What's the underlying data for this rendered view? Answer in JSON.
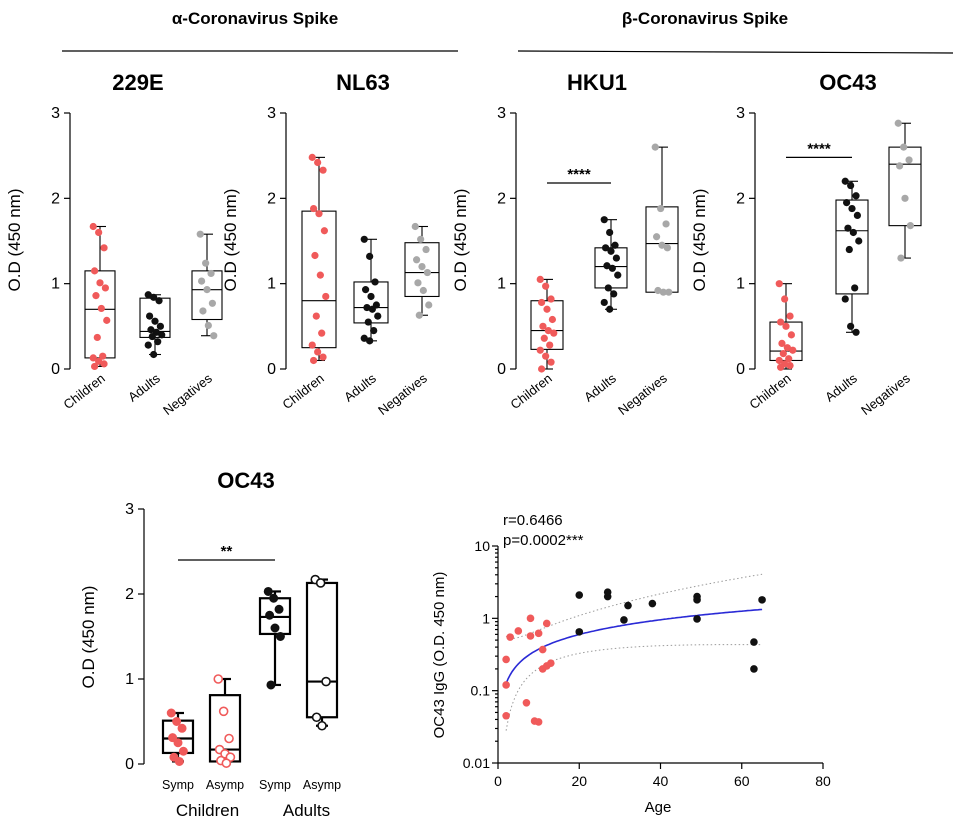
{
  "headers": {
    "alpha": "α-Coronavirus Spike",
    "beta": "β-Coronavirus Spike"
  },
  "colors": {
    "children": "#f05a5a",
    "adults": "#111111",
    "negatives": "#a8a8a8",
    "fit": "#2a2ad6",
    "ci": "#9a9a9a"
  },
  "chart_data": [
    {
      "type": "box",
      "title": "229E",
      "ylabel": "O.D (450 nm)",
      "ylim": [
        0,
        3
      ],
      "yticks": [
        0,
        1,
        2,
        3
      ],
      "categories": [
        "Children",
        "Adults",
        "Negatives"
      ],
      "boxes": [
        {
          "min": 0.03,
          "q1": 0.13,
          "median": 0.7,
          "q3": 1.15,
          "max": 1.67
        },
        {
          "min": 0.17,
          "q1": 0.37,
          "median": 0.44,
          "q3": 0.83,
          "max": 0.87
        },
        {
          "min": 0.39,
          "q1": 0.58,
          "median": 0.93,
          "q3": 1.15,
          "max": 1.58
        }
      ],
      "points": [
        [
          1.67,
          1.6,
          1.42,
          1.15,
          1.01,
          0.95,
          0.86,
          0.71,
          0.57,
          0.37,
          0.15,
          0.13,
          0.09,
          0.06,
          0.03
        ],
        [
          0.87,
          0.84,
          0.8,
          0.62,
          0.56,
          0.5,
          0.46,
          0.43,
          0.4,
          0.38,
          0.32,
          0.28,
          0.17
        ],
        [
          1.58,
          1.24,
          1.12,
          1.03,
          0.93,
          0.77,
          0.68,
          0.51,
          0.39
        ]
      ]
    },
    {
      "type": "box",
      "title": "NL63",
      "ylabel": "O.D (450 nm)",
      "ylim": [
        0,
        3
      ],
      "yticks": [
        0,
        1,
        2,
        3
      ],
      "categories": [
        "Children",
        "Adults",
        "Negatives"
      ],
      "boxes": [
        {
          "min": 0.1,
          "q1": 0.25,
          "median": 0.8,
          "q3": 1.85,
          "max": 2.48
        },
        {
          "min": 0.33,
          "q1": 0.54,
          "median": 0.72,
          "q3": 1.02,
          "max": 1.52
        },
        {
          "min": 0.63,
          "q1": 0.85,
          "median": 1.13,
          "q3": 1.48,
          "max": 1.67
        }
      ],
      "points": [
        [
          2.48,
          2.42,
          2.33,
          1.88,
          1.82,
          1.62,
          1.33,
          1.1,
          0.85,
          0.62,
          0.42,
          0.28,
          0.2,
          0.14,
          0.1
        ],
        [
          1.52,
          1.32,
          1.02,
          0.93,
          0.85,
          0.75,
          0.72,
          0.7,
          0.62,
          0.55,
          0.45,
          0.36,
          0.33
        ],
        [
          1.67,
          1.52,
          1.4,
          1.28,
          1.2,
          1.13,
          1.01,
          0.92,
          0.75,
          0.63
        ]
      ]
    },
    {
      "type": "box",
      "title": "HKU1",
      "ylabel": "O.D (450 nm)",
      "ylim": [
        0,
        3
      ],
      "yticks": [
        0,
        1,
        2,
        3
      ],
      "categories": [
        "Children",
        "Adults",
        "Negatives"
      ],
      "boxes": [
        {
          "min": 0.0,
          "q1": 0.23,
          "median": 0.45,
          "q3": 0.8,
          "max": 1.05
        },
        {
          "min": 0.7,
          "q1": 0.95,
          "median": 1.2,
          "q3": 1.42,
          "max": 1.75
        },
        {
          "min": 0.9,
          "q1": 0.9,
          "median": 1.47,
          "q3": 1.9,
          "max": 2.6
        }
      ],
      "points": [
        [
          1.05,
          0.97,
          0.82,
          0.78,
          0.7,
          0.58,
          0.5,
          0.45,
          0.42,
          0.36,
          0.28,
          0.22,
          0.15,
          0.08,
          0.0
        ],
        [
          1.75,
          1.6,
          1.45,
          1.42,
          1.38,
          1.3,
          1.21,
          1.18,
          1.1,
          0.95,
          0.88,
          0.78,
          0.7
        ],
        [
          2.6,
          1.88,
          1.7,
          1.55,
          1.45,
          1.42,
          0.92,
          0.9,
          0.9
        ]
      ],
      "annotation": {
        "text": "****",
        "from": 0,
        "to": 1,
        "y": 2.18
      }
    },
    {
      "type": "box",
      "title": "OC43",
      "ylabel": "O.D (450 nm)",
      "ylim": [
        0,
        3
      ],
      "yticks": [
        0,
        1,
        2,
        3
      ],
      "categories": [
        "Children",
        "Adults",
        "Negatives"
      ],
      "boxes": [
        {
          "min": 0.0,
          "q1": 0.1,
          "median": 0.21,
          "q3": 0.55,
          "max": 1.0
        },
        {
          "min": 0.43,
          "q1": 0.88,
          "median": 1.62,
          "q3": 1.98,
          "max": 2.2
        },
        {
          "min": 1.3,
          "q1": 1.68,
          "median": 2.4,
          "q3": 2.6,
          "max": 2.88
        }
      ],
      "points": [
        [
          1.0,
          0.82,
          0.62,
          0.55,
          0.5,
          0.4,
          0.3,
          0.25,
          0.22,
          0.18,
          0.12,
          0.1,
          0.06,
          0.04,
          0.02
        ],
        [
          2.2,
          2.15,
          2.03,
          1.95,
          1.88,
          1.8,
          1.65,
          1.6,
          1.5,
          1.4,
          0.95,
          0.82,
          0.5,
          0.43
        ],
        [
          2.88,
          2.6,
          2.45,
          2.38,
          2.0,
          1.68,
          1.3
        ]
      ],
      "annotation": {
        "text": "****",
        "from": 0,
        "to": 1,
        "y": 2.48
      }
    },
    {
      "type": "box",
      "title": "OC43",
      "ylabel": "O.D (450 nm)",
      "ylim": [
        0,
        3
      ],
      "yticks": [
        0,
        1,
        2,
        3
      ],
      "categories": [
        "Symp",
        "Asymp",
        "Symp",
        "Asymp"
      ],
      "group_labels": [
        "Children",
        "Adults"
      ],
      "boxes": [
        {
          "min": 0.03,
          "q1": 0.13,
          "median": 0.3,
          "q3": 0.51,
          "max": 0.6
        },
        {
          "min": 0.01,
          "q1": 0.03,
          "median": 0.17,
          "q3": 0.81,
          "max": 1.0
        },
        {
          "min": 0.93,
          "q1": 1.53,
          "median": 1.73,
          "q3": 1.95,
          "max": 2.03
        },
        {
          "min": 0.45,
          "q1": 0.55,
          "median": 0.97,
          "q3": 2.13,
          "max": 2.17
        }
      ],
      "points": [
        [
          0.6,
          0.5,
          0.42,
          0.31,
          0.25,
          0.15,
          0.08,
          0.03
        ],
        [
          1.0,
          0.62,
          0.3,
          0.17,
          0.12,
          0.08,
          0.04,
          0.01
        ],
        [
          2.03,
          1.95,
          1.82,
          1.75,
          1.6,
          1.5,
          0.93
        ],
        [
          2.17,
          2.13,
          0.97,
          0.55,
          0.45
        ]
      ],
      "annotation": {
        "text": "**",
        "from": 0,
        "to": 2,
        "y": 2.4
      }
    },
    {
      "type": "scatter",
      "xlabel": "Age",
      "ylabel": "OC43 IgG (O.D. 450 nm)",
      "xlim": [
        0,
        80
      ],
      "xticks": [
        0,
        20,
        40,
        60,
        80
      ],
      "ylim": [
        0.01,
        10
      ],
      "yscale": "log",
      "yticks": [
        0.01,
        0.1,
        1,
        10
      ],
      "ytick_labels": [
        "0.01",
        "0.1",
        "1",
        "10"
      ],
      "stats": {
        "r": "r=0.6466",
        "p": "p=0.0002***"
      },
      "series": [
        {
          "points": [
            [
              2,
              0.045
            ],
            [
              2,
              0.12
            ],
            [
              2,
              0.27
            ],
            [
              3,
              0.55
            ],
            [
              5,
              0.67
            ],
            [
              7,
              0.068
            ],
            [
              8,
              1.0
            ],
            [
              8,
              0.57
            ],
            [
              9,
              0.038
            ],
            [
              10,
              0.037
            ],
            [
              10,
              0.62
            ],
            [
              11,
              0.37
            ],
            [
              11,
              0.2
            ],
            [
              12,
              0.85
            ],
            [
              12,
              0.22
            ],
            [
              13,
              0.24
            ]
          ]
        },
        {
          "points": [
            [
              20,
              2.1
            ],
            [
              20,
              0.65
            ],
            [
              27,
              2.0
            ],
            [
              27,
              2.3
            ],
            [
              31,
              0.95
            ],
            [
              32,
              1.5
            ],
            [
              38,
              1.6
            ],
            [
              49,
              2.0
            ],
            [
              49,
              1.8
            ],
            [
              49,
              0.98
            ],
            [
              63,
              0.47
            ],
            [
              63,
              0.2
            ],
            [
              65,
              1.8
            ]
          ]
        }
      ],
      "fit": {
        "from": 2,
        "to": 65
      }
    }
  ]
}
